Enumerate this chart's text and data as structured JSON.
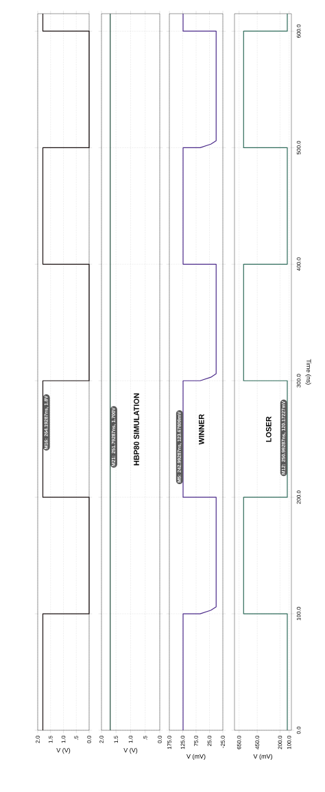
{
  "chart_data": [
    {
      "type": "line",
      "xlabel": "V (V)",
      "color": "#1a1010",
      "x": [
        1.8,
        1.8,
        0,
        0,
        1.8,
        1.8,
        0,
        0,
        1.8,
        1.8,
        0,
        0,
        1.8,
        1.8
      ],
      "values": [
        0,
        100,
        100,
        200,
        200,
        300,
        300,
        400,
        400,
        500,
        500,
        600,
        600,
        615
      ],
      "xlim": [
        2,
        0
      ],
      "ylim": [
        0,
        615
      ],
      "xticks": [
        {
          "value": 2,
          "label": "2.0"
        },
        {
          "value": 1.5,
          "label": "1.5"
        },
        {
          "value": 1,
          "label": "1.0"
        },
        {
          "value": 0.5,
          "label": ".5"
        },
        {
          "value": 0,
          "label": "0.0"
        }
      ],
      "yticks": [
        {
          "value": 0,
          "label": null
        },
        {
          "value": 100,
          "label": null
        },
        {
          "value": 200,
          "label": null
        },
        {
          "value": 300,
          "label": null
        },
        {
          "value": 400,
          "label": null
        },
        {
          "value": 500,
          "label": null
        },
        {
          "value": 600,
          "label": null
        }
      ],
      "grid": true,
      "tick_labels": "x",
      "annotations": [
        {
          "text": "M16: 264.19287ns, 1.8V",
          "x": 1.8,
          "y": 264.19287
        }
      ]
    },
    {
      "type": "line",
      "xlabel": "V (V)",
      "color": "#1f4a3a",
      "x": [
        1.7,
        1.7
      ],
      "values": [
        0,
        615
      ],
      "xlim": [
        2,
        0
      ],
      "ylim": [
        0,
        615
      ],
      "xticks": [
        {
          "value": 2,
          "label": "2.0"
        },
        {
          "value": 1.5,
          "label": "1.5"
        },
        {
          "value": 1,
          "label": "1.0"
        },
        {
          "value": 0.5,
          "label": ".5"
        },
        {
          "value": 0,
          "label": "0.0"
        }
      ],
      "yticks": [
        {
          "value": 0,
          "label": null
        },
        {
          "value": 100,
          "label": null
        },
        {
          "value": 200,
          "label": null
        },
        {
          "value": 300,
          "label": null
        },
        {
          "value": 400,
          "label": null
        },
        {
          "value": 500,
          "label": null
        },
        {
          "value": 600,
          "label": null
        }
      ],
      "grid": true,
      "tick_labels": "x",
      "annotations": [
        {
          "text": "M21: 251.79287ns, 1.700V",
          "x": 1.7,
          "y": 251.79287
        },
        "HBP80 SIMULATION"
      ]
    },
    {
      "type": "line",
      "xlabel": "V (mV)",
      "color": "#4b2a8a",
      "x": [
        123.67809,
        123.67809,
        60,
        20,
        0,
        0,
        123.67809,
        123.67809,
        60,
        20,
        0,
        0,
        123.67809,
        123.67809,
        60,
        20,
        0,
        0,
        123.67809,
        123.67809
      ],
      "values": [
        0,
        100,
        100,
        103,
        106,
        200,
        200,
        300,
        300,
        303,
        306,
        400,
        400,
        500,
        500,
        503,
        506,
        600,
        600,
        615
      ],
      "xlim": [
        175,
        -25
      ],
      "ylim": [
        0,
        615
      ],
      "xticks": [
        {
          "value": 175,
          "label": "175.0"
        },
        {
          "value": 125,
          "label": "125.0"
        },
        {
          "value": 75,
          "label": "75.0"
        },
        {
          "value": 25,
          "label": "25.0"
        },
        {
          "value": -25,
          "label": "-25.0"
        }
      ],
      "yticks": [
        {
          "value": 0,
          "label": null
        },
        {
          "value": 100,
          "label": null
        },
        {
          "value": 200,
          "label": null
        },
        {
          "value": 300,
          "label": null
        },
        {
          "value": 400,
          "label": null
        },
        {
          "value": 500,
          "label": null
        },
        {
          "value": 600,
          "label": null
        }
      ],
      "grid": true,
      "tick_labels": "x",
      "annotations": [
        {
          "text": "M5: 242.99287ns, 123.67809mV",
          "x": 123.67809,
          "y": 242.99287
        },
        "WINNER"
      ]
    },
    {
      "type": "line",
      "xlabel": "V (mV)",
      "ylabel": "Time (ns)",
      "color": "#2e6b5a",
      "x": [
        120.17227,
        120.17227,
        600,
        600,
        120.17227,
        120.17227,
        600,
        600,
        120.17227,
        120.17227,
        600,
        600,
        120.17227,
        120.17227
      ],
      "values": [
        0,
        100,
        100,
        200,
        200,
        300,
        300,
        400,
        400,
        500,
        500,
        600,
        600,
        615
      ],
      "xlim": [
        700,
        75
      ],
      "ylim": [
        0,
        615
      ],
      "xticks": [
        {
          "value": 650,
          "label": "650.0"
        },
        {
          "value": 450,
          "label": "450.0"
        },
        {
          "value": 200,
          "label": "200.0"
        },
        {
          "value": 100,
          "label": "100.0"
        }
      ],
      "yticks": [
        {
          "value": 0,
          "label": "0.0"
        },
        {
          "value": 100,
          "label": "100.0"
        },
        {
          "value": 200,
          "label": "200.0"
        },
        {
          "value": 300,
          "label": "300.0"
        },
        {
          "value": 400,
          "label": "400.0"
        },
        {
          "value": 500,
          "label": "500.0"
        },
        {
          "value": 600,
          "label": "600.0"
        }
      ],
      "grid": true,
      "annotations": [
        {
          "text": "M12: 250.99287ns, 120.17227mV",
          "x": 120.17227,
          "y": 250.99287
        },
        "LOSER"
      ]
    }
  ]
}
